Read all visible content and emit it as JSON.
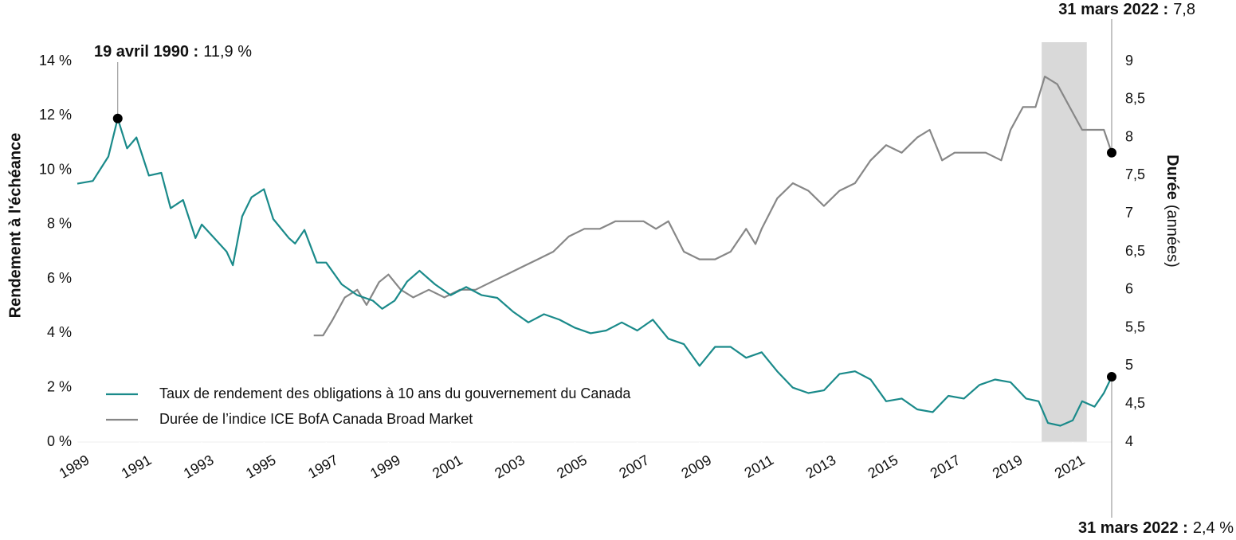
{
  "chart_data": {
    "type": "line",
    "y_title": "Rendement à l'échéance",
    "y2_title_bold": "Durée",
    "y2_title_rest": "(années)",
    "xlim": [
      1989,
      2022.25
    ],
    "xticks": [
      1989,
      1991,
      1993,
      1995,
      1997,
      1999,
      2001,
      2003,
      2005,
      2007,
      2009,
      2011,
      2013,
      2015,
      2017,
      2019,
      2021
    ],
    "ylim": [
      0,
      14
    ],
    "yticks": [
      {
        "value": 0,
        "label": "0 %"
      },
      {
        "value": 2,
        "label": "2 %"
      },
      {
        "value": 4,
        "label": "4 %"
      },
      {
        "value": 6,
        "label": "6 %"
      },
      {
        "value": 8,
        "label": "8 %"
      },
      {
        "value": 10,
        "label": "10 %"
      },
      {
        "value": 12,
        "label": "12 %"
      },
      {
        "value": 14,
        "label": "14 %"
      }
    ],
    "y2lim": [
      4,
      9
    ],
    "y2ticks": [
      4,
      {
        "value": 4.5,
        "label": "4,5"
      },
      5,
      {
        "value": 5.5,
        "label": "5,5"
      },
      6,
      {
        "value": 6.5,
        "label": "6,5"
      },
      7,
      {
        "value": 7.5,
        "label": "7,5"
      },
      8,
      {
        "value": 8.5,
        "label": "8,5"
      },
      9
    ],
    "shade": [
      2020.0,
      2021.45
    ],
    "shade_color": "#d9d9d9",
    "legend": "bottom-left",
    "series": [
      {
        "name": "Taux de rendement des obligations à 10 ans du gouvernement du Canada",
        "color": "#1a8a8a",
        "axis": "y",
        "x": [
          1989.0,
          1989.5,
          1990.0,
          1990.3,
          1990.6,
          1990.9,
          1991.3,
          1991.7,
          1992.0,
          1992.4,
          1992.8,
          1993.0,
          1993.4,
          1993.8,
          1994.0,
          1994.3,
          1994.6,
          1995.0,
          1995.3,
          1995.8,
          1996.0,
          1996.3,
          1996.7,
          1997.0,
          1997.5,
          1998.0,
          1998.5,
          1998.8,
          1999.2,
          1999.6,
          2000.0,
          2000.5,
          2001.0,
          2001.5,
          2002.0,
          2002.5,
          2003.0,
          2003.5,
          2004.0,
          2004.5,
          2005.0,
          2005.5,
          2006.0,
          2006.5,
          2007.0,
          2007.5,
          2008.0,
          2008.5,
          2009.0,
          2009.5,
          2010.0,
          2010.5,
          2011.0,
          2011.5,
          2012.0,
          2012.5,
          2013.0,
          2013.5,
          2014.0,
          2014.5,
          2015.0,
          2015.5,
          2016.0,
          2016.5,
          2017.0,
          2017.5,
          2018.0,
          2018.5,
          2019.0,
          2019.5,
          2019.9,
          2020.2,
          2020.6,
          2021.0,
          2021.3,
          2021.7,
          2022.0,
          2022.25
        ],
        "values": [
          9.5,
          9.6,
          10.5,
          11.9,
          10.8,
          11.2,
          9.8,
          9.9,
          8.6,
          8.9,
          7.5,
          8.0,
          7.5,
          7.0,
          6.5,
          8.3,
          9.0,
          9.3,
          8.2,
          7.5,
          7.3,
          7.8,
          6.6,
          6.6,
          5.8,
          5.4,
          5.2,
          4.9,
          5.2,
          5.9,
          6.3,
          5.8,
          5.4,
          5.7,
          5.4,
          5.3,
          4.8,
          4.4,
          4.7,
          4.5,
          4.2,
          4.0,
          4.1,
          4.4,
          4.1,
          4.5,
          3.8,
          3.6,
          2.8,
          3.5,
          3.5,
          3.1,
          3.3,
          2.6,
          2.0,
          1.8,
          1.9,
          2.5,
          2.6,
          2.3,
          1.5,
          1.6,
          1.2,
          1.1,
          1.7,
          1.6,
          2.1,
          2.3,
          2.2,
          1.6,
          1.5,
          0.7,
          0.6,
          0.8,
          1.5,
          1.3,
          1.8,
          2.4
        ]
      },
      {
        "name": "Durée de l’indice ICE BofA Canada Broad Market",
        "color": "#878787",
        "axis": "y2",
        "x": [
          1996.6,
          1996.9,
          1997.2,
          1997.6,
          1998.0,
          1998.3,
          1998.7,
          1999.0,
          1999.4,
          1999.8,
          2000.3,
          2000.8,
          2001.3,
          2001.8,
          2002.3,
          2002.8,
          2003.3,
          2003.8,
          2004.3,
          2004.8,
          2005.3,
          2005.8,
          2006.3,
          2006.8,
          2007.2,
          2007.6,
          2008.0,
          2008.5,
          2009.0,
          2009.5,
          2010.0,
          2010.5,
          2010.8,
          2011.0,
          2011.5,
          2012.0,
          2012.5,
          2013.0,
          2013.5,
          2014.0,
          2014.5,
          2015.0,
          2015.5,
          2016.0,
          2016.4,
          2016.8,
          2017.2,
          2017.7,
          2018.2,
          2018.7,
          2019.0,
          2019.4,
          2019.8,
          2020.1,
          2020.5,
          2020.9,
          2021.3,
          2021.6,
          2022.0,
          2022.25
        ],
        "values": [
          5.4,
          5.4,
          5.6,
          5.9,
          6.0,
          5.8,
          6.1,
          6.2,
          6.0,
          5.9,
          6.0,
          5.9,
          6.0,
          6.0,
          6.1,
          6.2,
          6.3,
          6.4,
          6.5,
          6.7,
          6.8,
          6.8,
          6.9,
          6.9,
          6.9,
          6.8,
          6.9,
          6.5,
          6.4,
          6.4,
          6.5,
          6.8,
          6.6,
          6.8,
          7.2,
          7.4,
          7.3,
          7.1,
          7.3,
          7.4,
          7.7,
          7.9,
          7.8,
          8.0,
          8.1,
          7.7,
          7.8,
          7.8,
          7.8,
          7.7,
          8.1,
          8.4,
          8.4,
          8.8,
          8.7,
          8.4,
          8.1,
          8.1,
          8.1,
          7.8
        ]
      }
    ],
    "annotations": [
      {
        "date": "19 avril 1990 :",
        "label": "11,9 %",
        "x": 1990.3,
        "value": 11.9,
        "axis": "y",
        "place": "top-left"
      },
      {
        "date": "31 mars 2022 :",
        "label": "7,8",
        "x": 2022.25,
        "value": 7.8,
        "axis": "y2",
        "place": "top"
      },
      {
        "date": "31 mars 2022 :",
        "label": "2,4 %",
        "x": 2022.25,
        "value": 2.4,
        "axis": "y",
        "place": "bottom"
      }
    ]
  }
}
